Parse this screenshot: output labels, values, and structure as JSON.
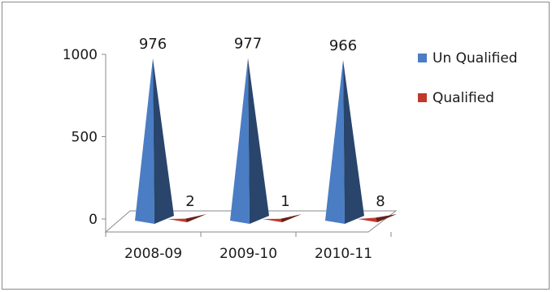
{
  "chart_data": {
    "type": "bar",
    "style": "3d-pyramid",
    "categories": [
      "2008-09",
      "2009-10",
      "2010-11"
    ],
    "series": [
      {
        "name": "Un Qualified",
        "values": [
          976,
          977,
          966
        ],
        "color": "#4a7dc4"
      },
      {
        "name": "Qualified",
        "values": [
          2,
          1,
          8
        ],
        "color": "#c0392b"
      }
    ],
    "yticks": [
      0,
      500,
      1000
    ],
    "ylim": [
      0,
      1000
    ],
    "legend": "right",
    "grid": false
  }
}
